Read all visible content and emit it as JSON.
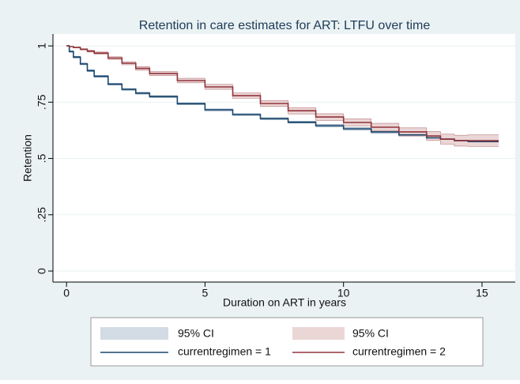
{
  "chart_data": {
    "type": "line",
    "step": true,
    "title": "Retention in care estimates for ART: LTFU over time",
    "x_label": "Duration on ART in years",
    "y_label": "Retention",
    "x": [
      0,
      0.1,
      0.25,
      0.5,
      0.75,
      1,
      1.5,
      2,
      2.5,
      3,
      4,
      5,
      6,
      7,
      8,
      9,
      10,
      11,
      12,
      13,
      13.5,
      14,
      14.5,
      15.6
    ],
    "series": [
      {
        "name": "currentregimen = 1",
        "color": "#1a476f",
        "values": [
          1,
          0.975,
          0.95,
          0.92,
          0.89,
          0.865,
          0.83,
          0.807,
          0.79,
          0.775,
          0.743,
          0.716,
          0.695,
          0.677,
          0.661,
          0.646,
          0.632,
          0.618,
          0.605,
          0.592,
          0.586,
          0.58,
          0.575,
          0.575
        ],
        "ci": {
          "name": "95% CI",
          "color": "#d3dbe4",
          "lower": [
            1,
            0.972,
            0.946,
            0.916,
            0.886,
            0.861,
            0.826,
            0.803,
            0.786,
            0.771,
            0.739,
            0.712,
            0.691,
            0.673,
            0.657,
            0.641,
            0.627,
            0.613,
            0.6,
            0.586,
            0.58,
            0.573,
            0.567,
            0.567
          ],
          "upper": [
            1,
            0.978,
            0.954,
            0.924,
            0.894,
            0.869,
            0.834,
            0.811,
            0.794,
            0.779,
            0.747,
            0.72,
            0.699,
            0.681,
            0.665,
            0.651,
            0.637,
            0.623,
            0.61,
            0.598,
            0.592,
            0.587,
            0.583,
            0.583
          ]
        }
      },
      {
        "name": "currentregimen = 2",
        "color": "#90353b",
        "values": [
          1,
          0.997,
          0.993,
          0.985,
          0.977,
          0.968,
          0.946,
          0.923,
          0.9,
          0.877,
          0.846,
          0.818,
          0.779,
          0.744,
          0.712,
          0.684,
          0.66,
          0.639,
          0.618,
          0.6,
          0.586,
          0.579,
          0.579,
          0.579
        ],
        "ci": {
          "name": "95% CI",
          "color": "#ebd6d6",
          "lower": [
            1,
            0.996,
            0.991,
            0.982,
            0.973,
            0.963,
            0.94,
            0.916,
            0.892,
            0.868,
            0.836,
            0.807,
            0.767,
            0.731,
            0.698,
            0.669,
            0.644,
            0.622,
            0.6,
            0.58,
            0.564,
            0.555,
            0.553,
            0.553
          ],
          "upper": [
            1,
            0.998,
            0.995,
            0.988,
            0.981,
            0.973,
            0.952,
            0.93,
            0.908,
            0.886,
            0.856,
            0.829,
            0.791,
            0.757,
            0.726,
            0.699,
            0.676,
            0.656,
            0.636,
            0.62,
            0.608,
            0.603,
            0.605,
            0.605
          ]
        }
      }
    ],
    "xlim": [
      -0.49,
      16.2
    ],
    "xticks": [
      0,
      5,
      10,
      15
    ],
    "ylim": [
      -0.049,
      1.053
    ],
    "yticks": [
      0,
      {
        "value": 0.25,
        "label": ".25"
      },
      {
        "value": 0.5,
        "label": ".5"
      },
      {
        "value": 0.75,
        "label": ".75"
      },
      1
    ],
    "grid": true,
    "legend": "bottom"
  }
}
